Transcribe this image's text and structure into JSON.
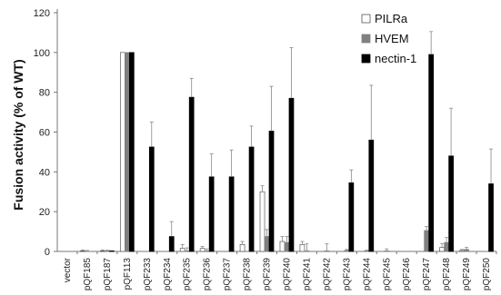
{
  "chart_data": {
    "type": "bar",
    "ylabel": "Fusion activity (% of WT)",
    "ylim": [
      0,
      120
    ],
    "yticks": [
      0,
      20,
      40,
      60,
      80,
      100,
      120
    ],
    "categories": [
      "vector",
      "pQF185",
      "pQF187",
      "pQF113",
      "pQF233",
      "pQF234",
      "pQF235",
      "pQF236",
      "pQF237",
      "pQF238",
      "pQF239",
      "pQF240",
      "pQF241",
      "pQF242",
      "pQF243",
      "pQF244",
      "pQF245",
      "pQF246",
      "pQF247",
      "pQF248",
      "pQF249",
      "pQF250"
    ],
    "series": [
      {
        "name": "PILRa",
        "color": "#ffffff",
        "values": [
          0,
          0.3,
          0.3,
          100,
          0,
          0,
          1.5,
          1.5,
          0,
          3.5,
          30,
          5,
          3.5,
          0,
          0,
          0,
          0,
          0,
          0,
          2,
          0.5,
          0
        ],
        "errors": [
          0,
          0.5,
          0.5,
          0,
          0,
          0,
          2,
          1,
          0,
          1.5,
          3,
          2.5,
          1.5,
          0,
          0,
          0,
          0,
          0,
          0,
          2,
          0.5,
          0
        ]
      },
      {
        "name": "HVEM",
        "color": "#808080",
        "values": [
          0,
          0,
          0.3,
          100,
          0,
          0,
          0.3,
          0.3,
          0,
          0,
          7.5,
          4.5,
          0.3,
          0.3,
          0.5,
          0.3,
          0.3,
          0,
          10.5,
          4.5,
          1,
          0
        ],
        "errors": [
          0,
          0.5,
          0.3,
          0,
          0,
          0,
          1.5,
          1,
          0,
          0,
          3.5,
          3,
          3.5,
          3.5,
          0.5,
          0.3,
          1,
          0,
          2,
          2.5,
          1,
          0
        ],
        "ticks_only": [
          true,
          true,
          false,
          false,
          false,
          false,
          false,
          false,
          false,
          false,
          false,
          false,
          false,
          false,
          false,
          false,
          false,
          false,
          false,
          false,
          false,
          false
        ]
      },
      {
        "name": "nectin-1",
        "color": "#000000",
        "values": [
          0,
          0,
          0.3,
          100,
          52.5,
          7.5,
          77.5,
          37.5,
          37.5,
          52.5,
          60.5,
          77,
          0,
          0,
          34.5,
          56,
          0,
          0,
          99,
          48,
          0,
          34
        ],
        "errors": [
          0,
          0,
          0,
          0,
          12.5,
          7.5,
          9.5,
          11.5,
          13.5,
          10.5,
          22.5,
          25.5,
          0,
          0,
          6.5,
          27.5,
          0,
          0,
          11.5,
          24,
          0,
          17.5
        ]
      }
    ],
    "legend": "top-right",
    "grid": false
  }
}
